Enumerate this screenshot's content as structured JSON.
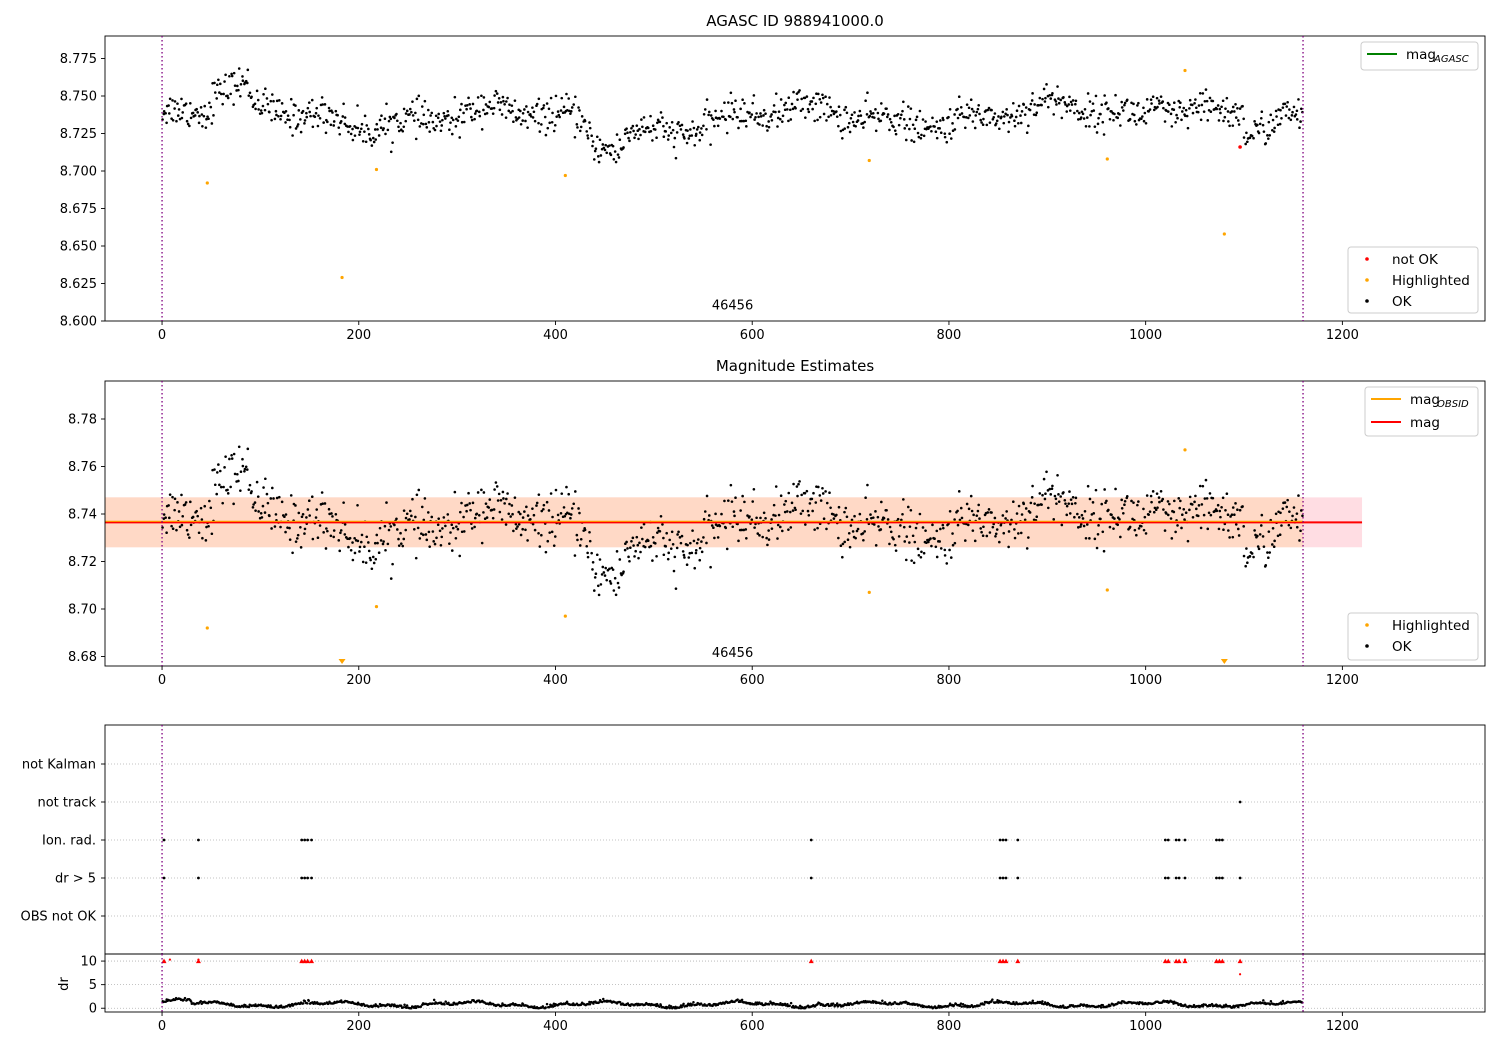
{
  "chart_data": [
    {
      "type": "scatter",
      "title": "AGASC ID 988941000.0",
      "xlim": [
        -58,
        1345
      ],
      "ylim": [
        8.6,
        8.79
      ],
      "xticks": [
        0,
        200,
        400,
        600,
        800,
        1000,
        1200
      ],
      "yticks": [
        8.6,
        8.625,
        8.65,
        8.675,
        8.7,
        8.725,
        8.75,
        8.775
      ],
      "vlines": [
        0,
        1160
      ],
      "obsid_label": {
        "text": "46456",
        "x": 580,
        "y": 8.605
      },
      "ok_baseline": 8.735,
      "highlighted": [
        [
          46,
          8.692
        ],
        [
          183,
          8.629
        ],
        [
          218,
          8.701
        ],
        [
          410,
          8.697
        ],
        [
          719,
          8.707
        ],
        [
          961,
          8.708
        ],
        [
          1040,
          8.767
        ],
        [
          1080,
          8.658
        ]
      ],
      "not_ok": [
        [
          1096,
          8.716
        ]
      ],
      "legend_lines": [
        {
          "label_main": "mag",
          "label_sub": "AGASC",
          "color": "#008000"
        }
      ],
      "legend_points": [
        {
          "label": "not OK",
          "color": "#ff0000"
        },
        {
          "label": "Highlighted",
          "color": "#ffa500"
        },
        {
          "label": "OK",
          "color": "#000000"
        }
      ]
    },
    {
      "type": "scatter",
      "title": "Magnitude Estimates",
      "xlim": [
        -58,
        1345
      ],
      "ylim": [
        8.676,
        8.796
      ],
      "xticks": [
        0,
        200,
        400,
        600,
        800,
        1000,
        1200
      ],
      "yticks": [
        8.68,
        8.7,
        8.72,
        8.74,
        8.76,
        8.78
      ],
      "vlines": [
        0,
        1160
      ],
      "obsid_label": {
        "text": "46456",
        "x": 580,
        "y": 8.679
      },
      "ok_baseline": 8.735,
      "mag_line": {
        "value": 8.7365,
        "x_start": -58,
        "x_end": 1220,
        "color": "#ff0000",
        "band": [
          8.726,
          8.747
        ],
        "band_color": "#ffdde3"
      },
      "mag_obsid_line": {
        "value": 8.7365,
        "x_start": -58,
        "x_end": 1160,
        "color": "#ffa500",
        "band": [
          8.726,
          8.747
        ],
        "band_color": "#ffd9c6"
      },
      "highlighted": [
        [
          46,
          8.692
        ],
        [
          218,
          8.701
        ],
        [
          410,
          8.697
        ],
        [
          719,
          8.707
        ],
        [
          961,
          8.708
        ],
        [
          1040,
          8.767
        ]
      ],
      "off_scale": [
        [
          183,
          8.676
        ],
        [
          1080,
          8.676
        ]
      ],
      "legend_lines": [
        {
          "label_main": "mag",
          "label_sub": "OBSID",
          "color": "#ffa500"
        },
        {
          "label_main": "mag",
          "label_sub": "",
          "color": "#ff0000"
        }
      ],
      "legend_points": [
        {
          "label": "Highlighted",
          "color": "#ffa500"
        },
        {
          "label": "OK",
          "color": "#000000"
        }
      ]
    },
    {
      "type": "scatter",
      "title": "",
      "xlim": [
        -58,
        1345
      ],
      "categories": [
        "not Kalman",
        "not track",
        "Ion. rad.",
        "dr > 5",
        "OBS not OK"
      ],
      "vlines": [
        0,
        1160
      ],
      "flags": {
        "not track": [
          1096
        ],
        "Ion. rad.": [
          2,
          37,
          142,
          145,
          148,
          152,
          660,
          852,
          855,
          858,
          870,
          1020,
          1023,
          1031,
          1034,
          1040,
          1072,
          1075,
          1078
        ],
        "dr > 5": [
          2,
          37,
          142,
          145,
          148,
          152,
          660,
          852,
          855,
          858,
          870,
          1020,
          1023,
          1031,
          1034,
          1040,
          1072,
          1075,
          1078,
          1096
        ]
      }
    },
    {
      "type": "scatter",
      "ylabel": "dr",
      "xlim": [
        -58,
        1345
      ],
      "ylim": [
        -0.8,
        11.5
      ],
      "xticks": [
        0,
        200,
        400,
        600,
        800,
        1000,
        1200
      ],
      "yticks": [
        0,
        5,
        10
      ],
      "vlines": [
        0,
        1160
      ],
      "clipped_points": [
        2,
        37,
        142,
        145,
        148,
        152,
        660,
        852,
        855,
        858,
        870,
        1020,
        1023,
        1031,
        1034,
        1040,
        1072,
        1075,
        1078,
        1096
      ],
      "clip_value": 10,
      "outliers": [
        [
          1096,
          7.2
        ],
        [
          8,
          10.3
        ],
        [
          37,
          10.3
        ],
        [
          1040,
          10.3
        ]
      ]
    }
  ]
}
